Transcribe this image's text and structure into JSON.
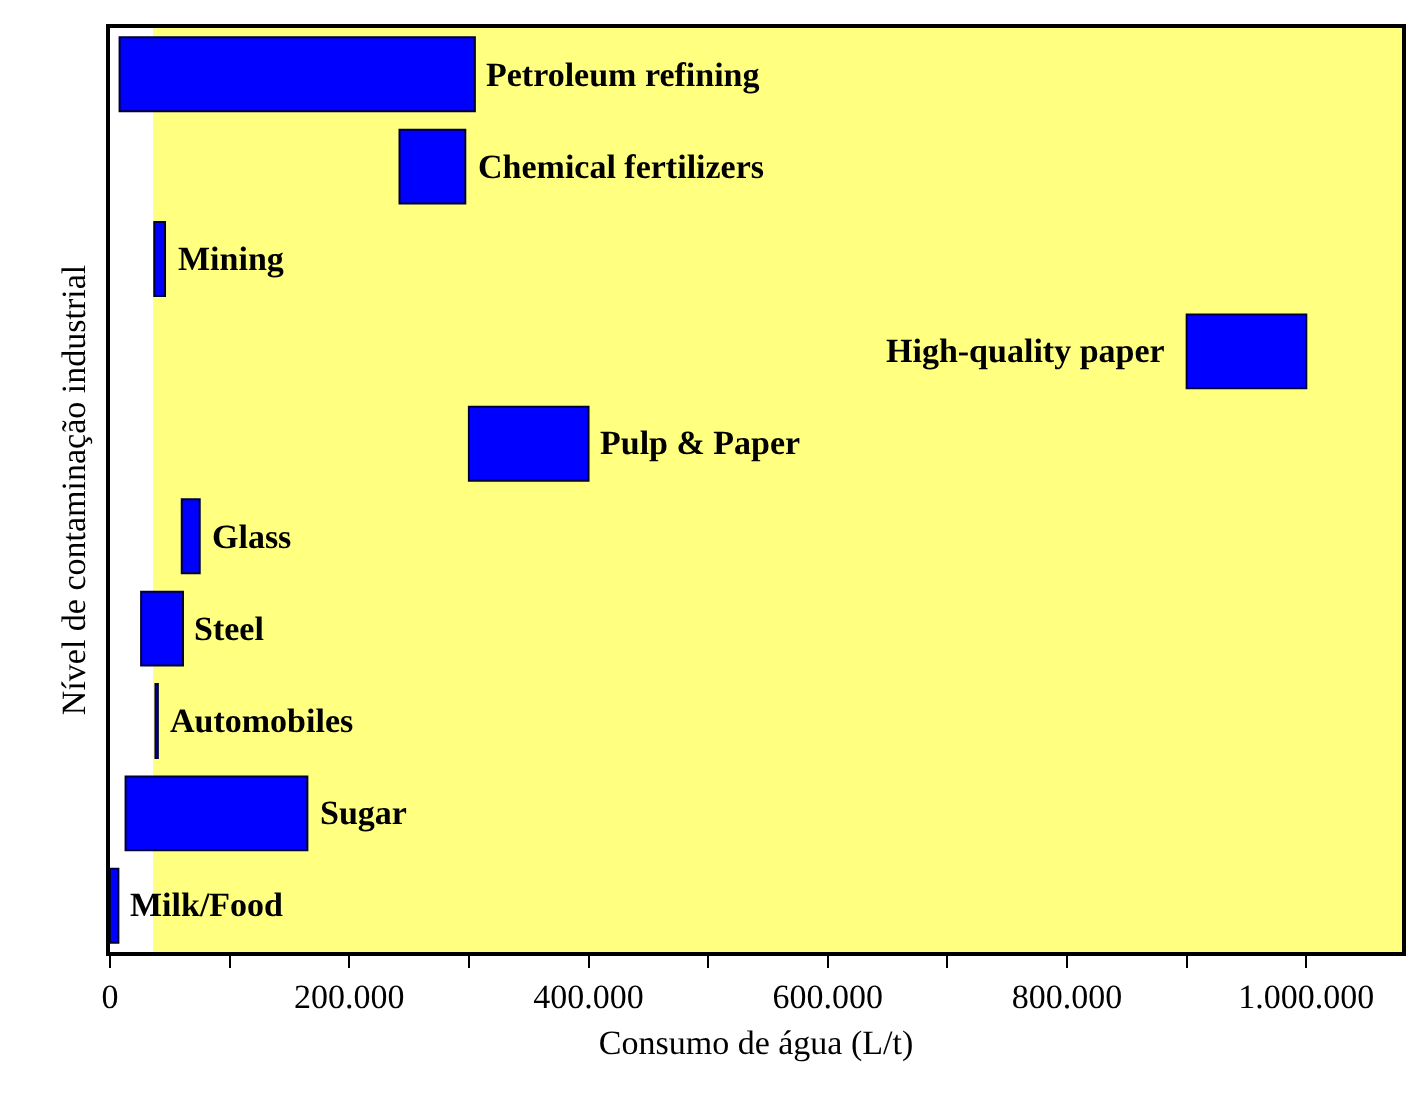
{
  "chart_data": {
    "type": "bar",
    "orientation": "horizontal",
    "xlabel": "Consumo de água (L/t)",
    "ylabel": "Nível de contaminação industrial",
    "categories": [
      "Petroleum refining",
      "Chemical fertilizers",
      "Mining",
      "High-quality paper",
      "Pulp & Paper",
      "Glass",
      "Steel",
      "Automobiles",
      "Sugar",
      "Milk/Food"
    ],
    "base": [
      8000,
      242000,
      37000,
      900000,
      300000,
      60000,
      26000,
      38000,
      13000,
      0
    ],
    "values": [
      297000,
      55000,
      9000,
      100000,
      100000,
      15000,
      35000,
      2000,
      152000,
      7000
    ],
    "color": "#0000ff",
    "xlim": [
      0,
      1080000
    ],
    "xticks": [
      {
        "value": 0,
        "label": "0"
      },
      {
        "value": 100000,
        "label": null
      },
      {
        "value": 200000,
        "label": "200.000"
      },
      {
        "value": 300000,
        "label": null
      },
      {
        "value": 400000,
        "label": "400.000"
      },
      {
        "value": 500000,
        "label": null
      },
      {
        "value": 600000,
        "label": "600.000"
      },
      {
        "value": 700000,
        "label": null
      },
      {
        "value": 800000,
        "label": "800.000"
      },
      {
        "value": 900000,
        "label": null
      },
      {
        "value": 1000000,
        "label": "1.000.000"
      }
    ],
    "bands": [
      {
        "axis": "x",
        "from": 36000,
        "to": 1080000,
        "color": "#ffff80"
      }
    ],
    "tick_labels": "x"
  }
}
